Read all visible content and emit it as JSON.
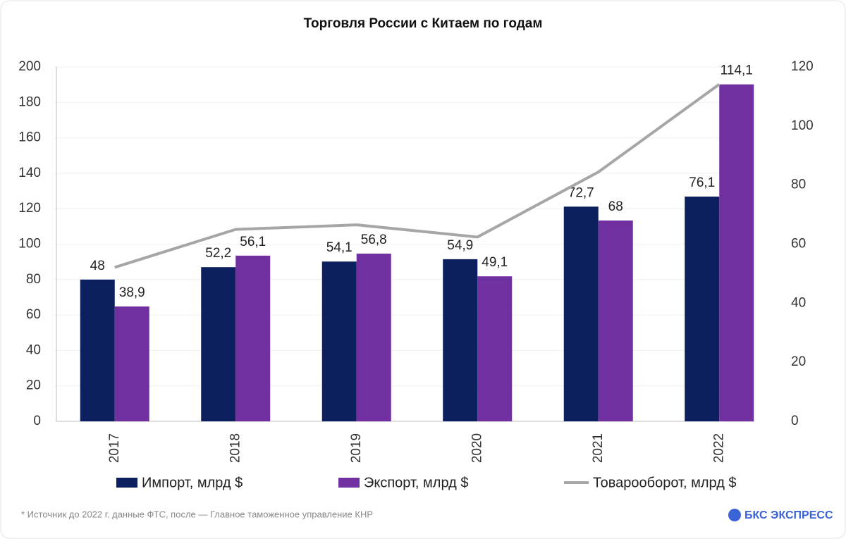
{
  "chart_data": {
    "type": "bar",
    "title": "Торговля России с Китаем по годам",
    "categories": [
      "2017",
      "2018",
      "2019",
      "2020",
      "2021",
      "2022"
    ],
    "series": [
      {
        "name": "Импорт, млрд $",
        "type": "bar",
        "axis": "y2",
        "color": "#0c1f5e",
        "values": [
          48,
          52.2,
          54.1,
          54.9,
          72.7,
          76.1
        ],
        "value_labels": [
          "48",
          "52,2",
          "54,1",
          "54,9",
          "72,7",
          "76,1"
        ]
      },
      {
        "name": "Экспорт, млрд $",
        "type": "bar",
        "axis": "y2",
        "color": "#7030a0",
        "values": [
          38.9,
          56.1,
          56.8,
          49.1,
          68,
          114.1
        ],
        "value_labels": [
          "38,9",
          "56,1",
          "56,8",
          "49,1",
          "68",
          "114,1"
        ]
      },
      {
        "name": "Товарооборот, млрд $",
        "type": "line",
        "color": "#a6a6a6",
        "values": [
          86.9,
          108.3,
          110.9,
          104,
          140.7,
          190.2
        ]
      }
    ],
    "ylim": [
      0,
      200
    ],
    "yticks": [
      0,
      20,
      40,
      60,
      80,
      100,
      120,
      140,
      160,
      180,
      200
    ],
    "y2lim": [
      0,
      120
    ],
    "y2ticks": [
      0,
      20,
      40,
      60,
      80,
      100,
      120
    ],
    "grid": true,
    "legend": "bottom",
    "source": "*  Источник до 2022 г. данные ФТС, после — Главное таможенное управление КНР",
    "brand": "БКС ЭКСПРЕСС"
  }
}
